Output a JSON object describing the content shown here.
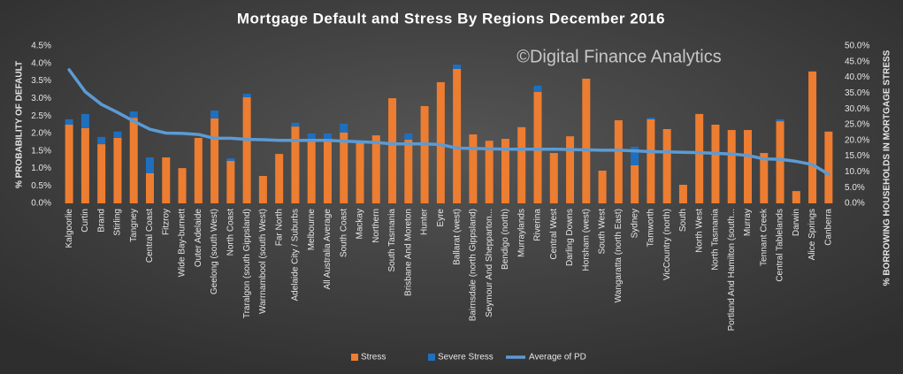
{
  "chart_data": {
    "type": "bar",
    "title": "Mortgage Default and Stress By Regions December 2016",
    "watermark": "©Digital Finance Analytics",
    "y_label": "% PROBABILITY OF DEFAULT",
    "y2_label": "% BORROWING HOUSEHOLDS IN MORTGAGE STRESS",
    "categories": [
      "Kalgoorlie",
      "Curtin",
      "Brand",
      "Stirling",
      "Tangney",
      "Central Coast",
      "Fitzroy",
      "Wide Bay-burnett",
      "Outer Adelaide",
      "Geelong (south West)",
      "North Coast",
      "Traralgon (south Gippsland)",
      "Warrnambool (south West)",
      "Far North",
      "Adelaide City / Suburbs",
      "Melbourne",
      "All Australia Average",
      "South Coast",
      "Mackay",
      "Northern",
      "South Tasmania",
      "Brisbane And Moreton",
      "Hunter",
      "Eyre",
      "Ballarat (west)",
      "Bairnsdale (north Gippsland)",
      "Seymour And Shepparton...",
      "Bendigo (north)",
      "Murraylands",
      "Riverina",
      "Central West",
      "Darling Downs",
      "Horsham (west)",
      "South West",
      "Wangaratta (north East)",
      "Sydney",
      "Tamworth",
      "VicCountry (north)",
      "South",
      "North West",
      "North Tasmania",
      "Portland And Hamilton (south...",
      "Murray",
      "Tennant Creek",
      "Central Tablelands",
      "Darwin",
      "Alice Springs",
      "Canberra"
    ],
    "series": [
      {
        "name": "Stress",
        "type": "bar",
        "axis": "y2",
        "color": "#ed7d31",
        "values": [
          25,
          23.9,
          18.8,
          20.8,
          27.2,
          9.6,
          14.6,
          11.2,
          20.8,
          27,
          13.5,
          33.7,
          8.7,
          15.7,
          24.4,
          20.2,
          20.2,
          22.5,
          19.1,
          21.6,
          33.4,
          20.2,
          30.9,
          38.5,
          42.7,
          21.9,
          19.9,
          20.5,
          24.2,
          35.4,
          16,
          21.3,
          39.6,
          10.4,
          26.4,
          12.1,
          26.7,
          23.6,
          5.9,
          28.4,
          25,
          23.3,
          23.3,
          16,
          26.1,
          3.9,
          41.9,
          22.8
        ]
      },
      {
        "name": "Severe Stress",
        "type": "bar",
        "axis": "y2",
        "color": "#1f6fbf",
        "values": [
          1.7,
          4.5,
          2.3,
          2,
          2,
          5,
          0,
          0,
          0,
          2.5,
          0.8,
          1.1,
          0,
          0,
          1.2,
          2,
          2,
          2.8,
          0,
          0,
          0,
          2,
          0,
          0,
          1.4,
          0,
          0,
          0,
          0,
          2,
          0,
          0,
          0,
          0,
          0,
          5.9,
          0.5,
          0,
          0,
          0,
          0,
          0,
          0,
          0,
          0.6,
          0,
          0,
          0
        ]
      },
      {
        "name": "Average of PD",
        "type": "line",
        "axis": "y",
        "color": "#5b9bd5",
        "values": [
          3.82,
          3.19,
          2.83,
          2.6,
          2.35,
          2.12,
          2.01,
          2,
          1.97,
          1.86,
          1.86,
          1.83,
          1.82,
          1.8,
          1.8,
          1.8,
          1.8,
          1.78,
          1.76,
          1.74,
          1.7,
          1.7,
          1.7,
          1.68,
          1.58,
          1.57,
          1.56,
          1.55,
          1.55,
          1.55,
          1.55,
          1.54,
          1.53,
          1.52,
          1.52,
          1.5,
          1.48,
          1.47,
          1.46,
          1.45,
          1.43,
          1.41,
          1.37,
          1.27,
          1.26,
          1.2,
          1.11,
          0.83
        ]
      }
    ],
    "ylim": [
      0,
      4.5
    ],
    "yticks": [
      {
        "value": 0,
        "label": "0.0%"
      },
      {
        "value": 0.5,
        "label": "0.5%"
      },
      {
        "value": 1,
        "label": "1.0%"
      },
      {
        "value": 1.5,
        "label": "1.5%"
      },
      {
        "value": 2,
        "label": "2.0%"
      },
      {
        "value": 2.5,
        "label": "2.5%"
      },
      {
        "value": 3,
        "label": "3.0%"
      },
      {
        "value": 3.5,
        "label": "3.5%"
      },
      {
        "value": 4,
        "label": "4.0%"
      },
      {
        "value": 4.5,
        "label": "4.5%"
      }
    ],
    "y2lim": [
      0,
      50
    ],
    "y2ticks": [
      {
        "value": 0,
        "label": "0.0%"
      },
      {
        "value": 5,
        "label": "5.0%"
      },
      {
        "value": 10,
        "label": "10.0%"
      },
      {
        "value": 15,
        "label": "15.0%"
      },
      {
        "value": 20,
        "label": "20.0%"
      },
      {
        "value": 25,
        "label": "25.0%"
      },
      {
        "value": 30,
        "label": "30.0%"
      },
      {
        "value": 35,
        "label": "35.0%"
      },
      {
        "value": 40,
        "label": "40.0%"
      },
      {
        "value": 45,
        "label": "45.0%"
      },
      {
        "value": 50,
        "label": "50.0%"
      }
    ],
    "legend": "bottom"
  }
}
